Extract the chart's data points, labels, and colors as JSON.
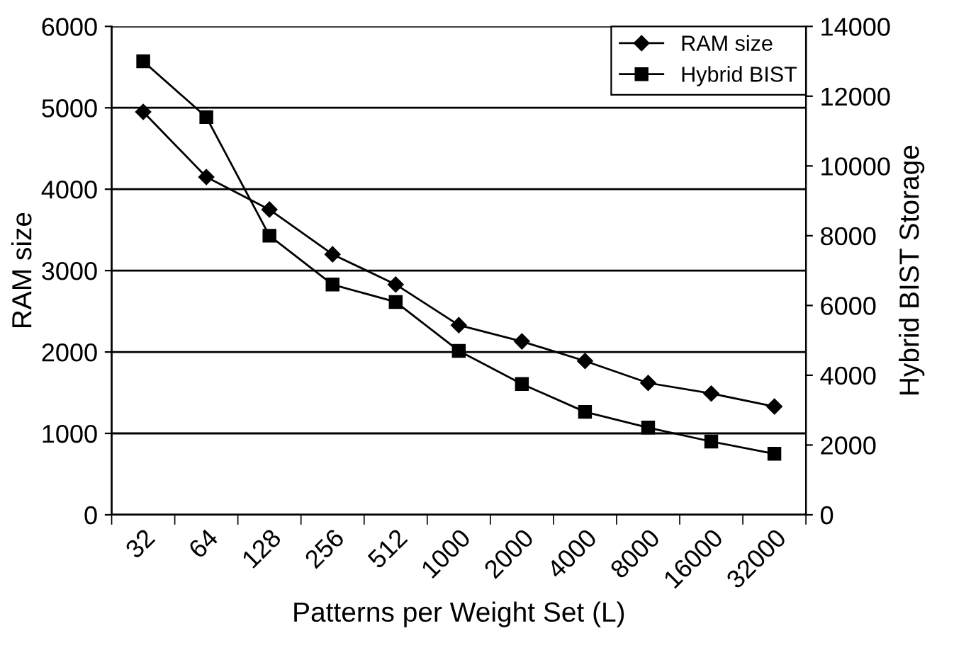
{
  "chart_data": {
    "type": "line",
    "xlabel": "Patterns per Weight Set (L)",
    "ylabel": "RAM size",
    "y2label": "Hybrid BIST Storage",
    "categories": [
      "32",
      "64",
      "128",
      "256",
      "512",
      "1000",
      "2000",
      "4000",
      "8000",
      "16000",
      "32000"
    ],
    "series": [
      {
        "name": "RAM size",
        "color": "#000000",
        "marker": "diamond",
        "values": [
          4950,
          4150,
          3750,
          3200,
          2830,
          2330,
          2130,
          1890,
          1620,
          1490,
          1330
        ]
      },
      {
        "name": "Hybrid BIST",
        "color": "#000000",
        "marker": "square",
        "axis": "y2",
        "values": [
          13000,
          11400,
          8000,
          6600,
          6100,
          4700,
          3750,
          2950,
          2500,
          2100,
          1750
        ]
      }
    ],
    "ylim": [
      0,
      6000
    ],
    "yticks": [
      0,
      1000,
      2000,
      3000,
      4000,
      5000,
      6000
    ],
    "y2lim": [
      0,
      14000
    ],
    "y2ticks": [
      0,
      2000,
      4000,
      6000,
      8000,
      10000,
      12000,
      14000
    ],
    "grid": "y",
    "legend": "top right",
    "line_style": "solid"
  }
}
